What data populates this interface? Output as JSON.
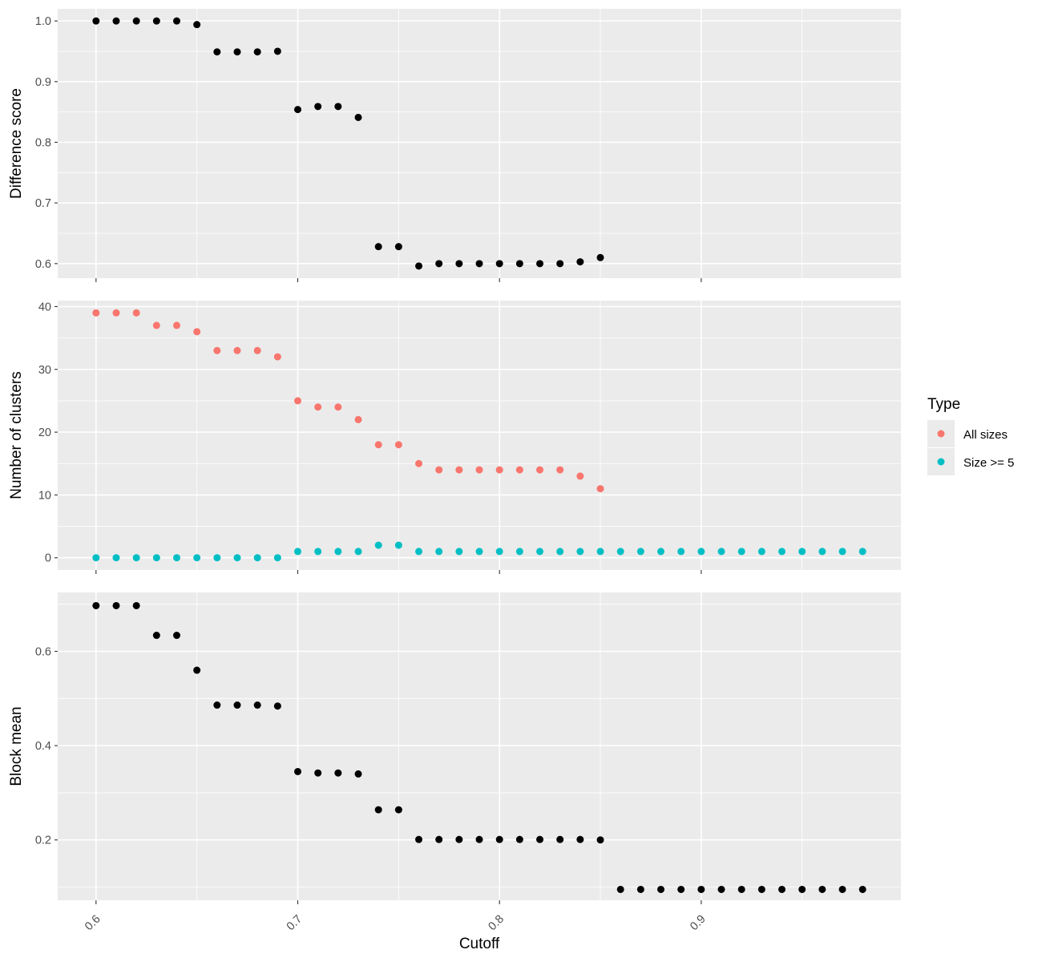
{
  "chart_data": [
    {
      "type": "scatter",
      "ylabel": "Difference score",
      "y_ticks": [
        0.6,
        0.7,
        0.8,
        0.9,
        1.0
      ],
      "y_tick_labels": [
        "0.6",
        "0.7",
        "0.8",
        "0.9",
        "1.0"
      ],
      "ylim": [
        0.576,
        1.02
      ],
      "series": [
        {
          "color": "#000000",
          "x": [
            0.6,
            0.61,
            0.62,
            0.63,
            0.64,
            0.65,
            0.66,
            0.67,
            0.68,
            0.69,
            0.7,
            0.71,
            0.72,
            0.73,
            0.74,
            0.75,
            0.76,
            0.77,
            0.78,
            0.79,
            0.8,
            0.81,
            0.82,
            0.83,
            0.84,
            0.85
          ],
          "y": [
            1.0,
            1.0,
            1.0,
            1.0,
            1.0,
            0.994,
            0.949,
            0.949,
            0.949,
            0.95,
            0.854,
            0.859,
            0.859,
            0.841,
            0.628,
            0.628,
            0.596,
            0.6,
            0.6,
            0.6,
            0.6,
            0.6,
            0.6,
            0.6,
            0.603,
            0.61
          ]
        }
      ]
    },
    {
      "type": "scatter",
      "ylabel": "Number of clusters",
      "y_ticks": [
        0,
        10,
        20,
        30,
        40
      ],
      "y_tick_labels": [
        "0",
        "10",
        "20",
        "30",
        "40"
      ],
      "ylim": [
        -1.95,
        40.95
      ],
      "legend": {
        "title": "Type",
        "position": "right"
      },
      "series": [
        {
          "name": "All sizes",
          "color": "#F8766D",
          "x": [
            0.6,
            0.61,
            0.62,
            0.63,
            0.64,
            0.65,
            0.66,
            0.67,
            0.68,
            0.69,
            0.7,
            0.71,
            0.72,
            0.73,
            0.74,
            0.75,
            0.76,
            0.77,
            0.78,
            0.79,
            0.8,
            0.81,
            0.82,
            0.83,
            0.84,
            0.85
          ],
          "y": [
            39,
            39,
            39,
            37,
            37,
            36,
            33,
            33,
            33,
            32,
            25,
            24,
            24,
            22,
            18,
            18,
            15,
            14,
            14,
            14,
            14,
            14,
            14,
            14,
            13,
            11
          ]
        },
        {
          "name": "Size >= 5",
          "color": "#00BFC4",
          "x": [
            0.6,
            0.61,
            0.62,
            0.63,
            0.64,
            0.65,
            0.66,
            0.67,
            0.68,
            0.69,
            0.7,
            0.71,
            0.72,
            0.73,
            0.74,
            0.75,
            0.76,
            0.77,
            0.78,
            0.79,
            0.8,
            0.81,
            0.82,
            0.83,
            0.84,
            0.85,
            0.86,
            0.87,
            0.88,
            0.89,
            0.9,
            0.91,
            0.92,
            0.93,
            0.94,
            0.95,
            0.96,
            0.97,
            0.98
          ],
          "y": [
            0,
            0,
            0,
            0,
            0,
            0,
            0,
            0,
            0,
            0,
            1,
            1,
            1,
            1,
            2,
            2,
            1,
            1,
            1,
            1,
            1,
            1,
            1,
            1,
            1,
            1,
            1,
            1,
            1,
            1,
            1,
            1,
            1,
            1,
            1,
            1,
            1,
            1,
            1
          ]
        }
      ]
    },
    {
      "type": "scatter",
      "ylabel": "Block mean",
      "y_ticks": [
        0.2,
        0.4,
        0.6
      ],
      "y_tick_labels": [
        "0.2",
        "0.4",
        "0.6"
      ],
      "ylim": [
        0.072,
        0.725
      ],
      "series": [
        {
          "color": "#000000",
          "x": [
            0.6,
            0.61,
            0.62,
            0.63,
            0.64,
            0.65,
            0.66,
            0.67,
            0.68,
            0.69,
            0.7,
            0.71,
            0.72,
            0.73,
            0.74,
            0.75,
            0.76,
            0.77,
            0.78,
            0.79,
            0.8,
            0.81,
            0.82,
            0.83,
            0.84,
            0.85,
            0.86,
            0.87,
            0.88,
            0.89,
            0.9,
            0.91,
            0.92,
            0.93,
            0.94,
            0.95,
            0.96,
            0.97,
            0.98
          ],
          "y": [
            0.697,
            0.697,
            0.697,
            0.634,
            0.634,
            0.56,
            0.486,
            0.486,
            0.486,
            0.484,
            0.345,
            0.342,
            0.342,
            0.34,
            0.264,
            0.264,
            0.201,
            0.201,
            0.201,
            0.201,
            0.201,
            0.201,
            0.201,
            0.201,
            0.201,
            0.2,
            0.095,
            0.095,
            0.095,
            0.095,
            0.095,
            0.095,
            0.095,
            0.095,
            0.095,
            0.095,
            0.095,
            0.095,
            0.095
          ]
        }
      ]
    }
  ],
  "x_axis": {
    "label": "Cutoff",
    "ticks": [
      0.6,
      0.7,
      0.8,
      0.9
    ],
    "tick_labels": [
      "0.6",
      "0.7",
      "0.8",
      "0.9"
    ],
    "xlim": [
      0.581,
      0.999
    ]
  },
  "legend": {
    "title": "Type",
    "items": [
      {
        "label": "All sizes",
        "color": "#F8766D"
      },
      {
        "label": "Size >= 5",
        "color": "#00BFC4"
      }
    ]
  }
}
